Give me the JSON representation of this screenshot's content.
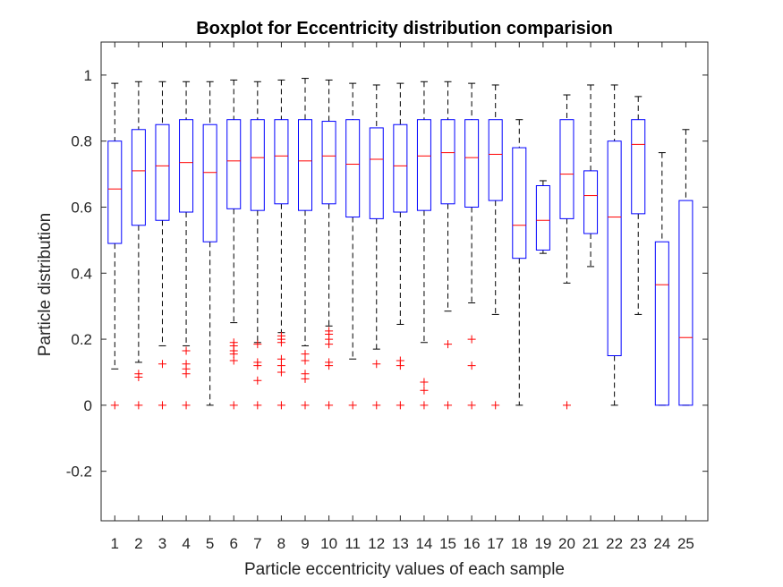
{
  "chart_data": {
    "type": "boxplot",
    "title": "Boxplot for Eccentricity distribution comparision",
    "xlabel": "Particle eccentricity values of each sample",
    "ylabel": "Particle distribution",
    "ylim": [
      -0.35,
      1.1
    ],
    "yticks": [
      -0.2,
      0,
      0.2,
      0.4,
      0.6,
      0.8,
      1
    ],
    "ytick_labels": [
      "-0.2",
      "0",
      "0.2",
      "0.4",
      "0.6",
      "0.8",
      "1"
    ],
    "categories": [
      "1",
      "2",
      "3",
      "4",
      "5",
      "6",
      "7",
      "8",
      "9",
      "10",
      "11",
      "12",
      "13",
      "14",
      "15",
      "16",
      "17",
      "18",
      "19",
      "20",
      "21",
      "22",
      "23",
      "24",
      "25"
    ],
    "grid": false,
    "colors": {
      "box": "#0000ff",
      "median": "#ff0000",
      "whisker": "#000000",
      "outlier": "#ff0000",
      "axis": "#262626"
    },
    "boxes": [
      {
        "label": "1",
        "whisker_low": 0.11,
        "q1": 0.49,
        "median": 0.655,
        "q3": 0.8,
        "whisker_high": 0.975,
        "outliers": [
          0
        ]
      },
      {
        "label": "2",
        "whisker_low": 0.13,
        "q1": 0.545,
        "median": 0.71,
        "q3": 0.835,
        "whisker_high": 0.98,
        "outliers": [
          0.085,
          0.095,
          0
        ]
      },
      {
        "label": "3",
        "whisker_low": 0.18,
        "q1": 0.56,
        "median": 0.725,
        "q3": 0.85,
        "whisker_high": 0.98,
        "outliers": [
          0.125,
          0
        ]
      },
      {
        "label": "4",
        "whisker_low": 0.18,
        "q1": 0.585,
        "median": 0.735,
        "q3": 0.865,
        "whisker_high": 0.98,
        "outliers": [
          0.165,
          0.125,
          0.11,
          0.095,
          0
        ]
      },
      {
        "label": "5",
        "whisker_low": 0.0,
        "q1": 0.495,
        "median": 0.705,
        "q3": 0.85,
        "whisker_high": 0.98,
        "outliers": []
      },
      {
        "label": "6",
        "whisker_low": 0.25,
        "q1": 0.595,
        "median": 0.74,
        "q3": 0.865,
        "whisker_high": 0.985,
        "outliers": [
          0.19,
          0.18,
          0.165,
          0.155,
          0.135,
          0
        ]
      },
      {
        "label": "7",
        "whisker_low": 0.19,
        "q1": 0.59,
        "median": 0.75,
        "q3": 0.865,
        "whisker_high": 0.98,
        "outliers": [
          0.185,
          0.13,
          0.12,
          0.075,
          0
        ]
      },
      {
        "label": "8",
        "whisker_low": 0.22,
        "q1": 0.61,
        "median": 0.755,
        "q3": 0.865,
        "whisker_high": 0.985,
        "outliers": [
          0.21,
          0.2,
          0.19,
          0.14,
          0.12,
          0.1,
          0
        ]
      },
      {
        "label": "9",
        "whisker_low": 0.18,
        "q1": 0.59,
        "median": 0.74,
        "q3": 0.865,
        "whisker_high": 0.99,
        "outliers": [
          0.155,
          0.135,
          0.095,
          0.08,
          0
        ]
      },
      {
        "label": "10",
        "whisker_low": 0.24,
        "q1": 0.61,
        "median": 0.755,
        "q3": 0.86,
        "whisker_high": 0.985,
        "outliers": [
          0.225,
          0.215,
          0.2,
          0.185,
          0.13,
          0.12,
          0
        ]
      },
      {
        "label": "11",
        "whisker_low": 0.14,
        "q1": 0.57,
        "median": 0.73,
        "q3": 0.865,
        "whisker_high": 0.975,
        "outliers": [
          0
        ]
      },
      {
        "label": "12",
        "whisker_low": 0.17,
        "q1": 0.565,
        "median": 0.745,
        "q3": 0.84,
        "whisker_high": 0.97,
        "outliers": [
          0.125,
          0
        ]
      },
      {
        "label": "13",
        "whisker_low": 0.245,
        "q1": 0.585,
        "median": 0.725,
        "q3": 0.85,
        "whisker_high": 0.975,
        "outliers": [
          0.135,
          0.12,
          0
        ]
      },
      {
        "label": "14",
        "whisker_low": 0.19,
        "q1": 0.59,
        "median": 0.755,
        "q3": 0.865,
        "whisker_high": 0.98,
        "outliers": [
          0.07,
          0.045,
          0
        ]
      },
      {
        "label": "15",
        "whisker_low": 0.285,
        "q1": 0.61,
        "median": 0.765,
        "q3": 0.865,
        "whisker_high": 0.98,
        "outliers": [
          0.185,
          0
        ]
      },
      {
        "label": "16",
        "whisker_low": 0.31,
        "q1": 0.6,
        "median": 0.75,
        "q3": 0.865,
        "whisker_high": 0.975,
        "outliers": [
          0.2,
          0.12,
          0
        ]
      },
      {
        "label": "17",
        "whisker_low": 0.275,
        "q1": 0.62,
        "median": 0.76,
        "q3": 0.865,
        "whisker_high": 0.97,
        "outliers": [
          0
        ]
      },
      {
        "label": "18",
        "whisker_low": 0.0,
        "q1": 0.445,
        "median": 0.545,
        "q3": 0.78,
        "whisker_high": 0.865,
        "outliers": []
      },
      {
        "label": "19",
        "whisker_low": 0.46,
        "q1": 0.47,
        "median": 0.56,
        "q3": 0.665,
        "whisker_high": 0.68,
        "outliers": []
      },
      {
        "label": "20",
        "whisker_low": 0.37,
        "q1": 0.565,
        "median": 0.7,
        "q3": 0.865,
        "whisker_high": 0.94,
        "outliers": [
          0
        ]
      },
      {
        "label": "21",
        "whisker_low": 0.42,
        "q1": 0.52,
        "median": 0.635,
        "q3": 0.71,
        "whisker_high": 0.97,
        "outliers": []
      },
      {
        "label": "22",
        "whisker_low": 0.0,
        "q1": 0.15,
        "median": 0.57,
        "q3": 0.8,
        "whisker_high": 0.97,
        "outliers": []
      },
      {
        "label": "23",
        "whisker_low": 0.275,
        "q1": 0.58,
        "median": 0.79,
        "q3": 0.865,
        "whisker_high": 0.935,
        "outliers": []
      },
      {
        "label": "24",
        "whisker_low": 0.0,
        "q1": 0.0,
        "median": 0.365,
        "q3": 0.495,
        "whisker_high": 0.765,
        "outliers": []
      },
      {
        "label": "25",
        "whisker_low": 0.0,
        "q1": 0.0,
        "median": 0.205,
        "q3": 0.62,
        "whisker_high": 0.835,
        "outliers": []
      }
    ]
  }
}
